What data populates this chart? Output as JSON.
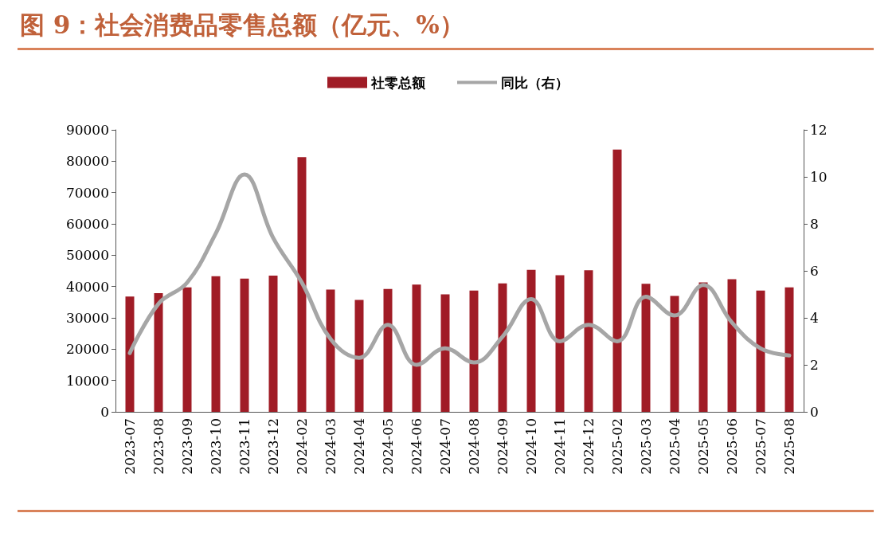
{
  "chart_data": {
    "type": "bar",
    "title": "图 9：社会消费品零售总额（亿元、%）",
    "categories": [
      "2023-07",
      "2023-08",
      "2023-09",
      "2023-10",
      "2023-11",
      "2023-12",
      "2024-02",
      "2024-03",
      "2024-04",
      "2024-05",
      "2024-06",
      "2024-07",
      "2024-08",
      "2024-09",
      "2024-10",
      "2024-11",
      "2024-12",
      "2025-02",
      "2025-03",
      "2025-04",
      "2025-05",
      "2025-06",
      "2025-07",
      "2025-08"
    ],
    "series": [
      {
        "name": "社零总额",
        "color": "#a01c26",
        "values": [
          36800,
          37900,
          39700,
          43300,
          42500,
          43500,
          81300,
          39000,
          35700,
          39200,
          40600,
          37500,
          38700,
          41000,
          45300,
          43600,
          45200,
          83700,
          40900,
          37000,
          41300,
          42300,
          38700,
          39700
        ]
      },
      {
        "name": "同比（右）",
        "type": "line",
        "axis": "y2",
        "color": "#a6a6a6",
        "values": [
          2.5,
          4.6,
          5.5,
          7.6,
          10.1,
          7.4,
          5.5,
          3.1,
          2.3,
          3.7,
          2.0,
          2.7,
          2.1,
          3.2,
          4.8,
          3.0,
          3.7,
          3.0,
          4.9,
          4.1,
          5.4,
          3.8,
          2.7,
          2.4
        ]
      }
    ],
    "ylim": [
      0,
      90000
    ],
    "yticks": [
      0,
      10000,
      20000,
      30000,
      40000,
      50000,
      60000,
      70000,
      80000,
      90000
    ],
    "y2lim": [
      0,
      12
    ],
    "y2ticks": [
      0,
      2,
      4,
      6,
      8,
      10,
      12
    ],
    "legend": "top",
    "grid": false,
    "marker": "none",
    "line_style": "solid"
  }
}
